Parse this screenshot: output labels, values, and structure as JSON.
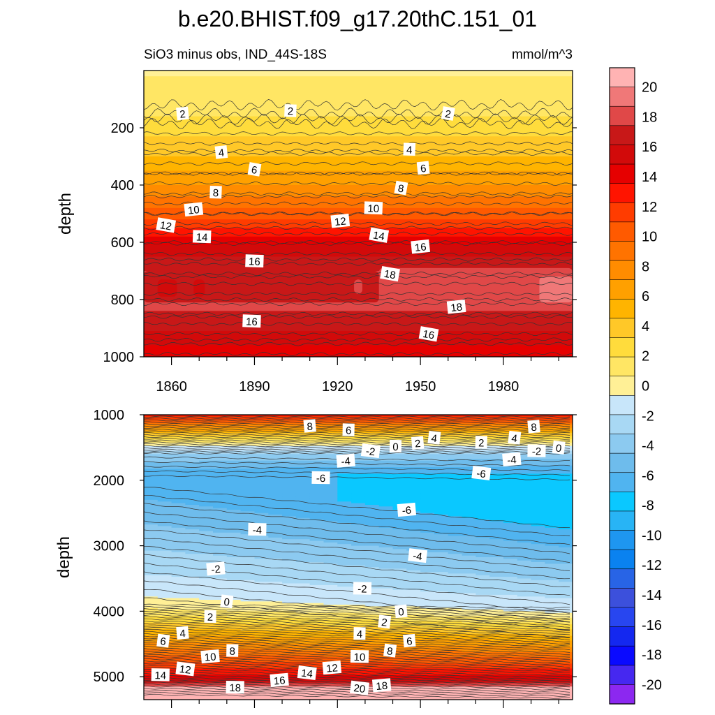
{
  "title": "b.e20.BHIST.f09_g17.20thC.151_01",
  "subtitle_left": "SiO3 minus obs, IND_44S-18S",
  "subtitle_right": "mmol/m^3",
  "chart_data": [
    {
      "type": "contour",
      "panel": "upper",
      "xlabel": "",
      "ylabel": "depth",
      "xlim": [
        1850,
        2005
      ],
      "ylim": [
        1000,
        0
      ],
      "xticks": [
        1860,
        1890,
        1920,
        1950,
        1980
      ],
      "yticks": [
        200,
        400,
        600,
        800,
        1000
      ],
      "grid": false,
      "depth_profile": [
        {
          "depth": 0,
          "value": 0.5
        },
        {
          "depth": 120,
          "value": 1.2
        },
        {
          "depth": 170,
          "value": 2
        },
        {
          "depth": 280,
          "value": 4
        },
        {
          "depth": 360,
          "value": 6
        },
        {
          "depth": 440,
          "value": 8
        },
        {
          "depth": 500,
          "value": 10
        },
        {
          "depth": 550,
          "value": 12
        },
        {
          "depth": 600,
          "value": 14
        },
        {
          "depth": 660,
          "value": 16
        },
        {
          "depth": 720,
          "value": 17.5
        },
        {
          "depth": 800,
          "value": 17.5
        },
        {
          "depth": 860,
          "value": 16.5
        },
        {
          "depth": 940,
          "value": 15
        },
        {
          "depth": 1000,
          "value": 13.5
        }
      ],
      "contour_labels": [
        {
          "text": "2",
          "x": 1864,
          "y": 150
        },
        {
          "text": "2",
          "x": 1903,
          "y": 140
        },
        {
          "text": "2",
          "x": 1960,
          "y": 150
        },
        {
          "text": "4",
          "x": 1878,
          "y": 285
        },
        {
          "text": "4",
          "x": 1946,
          "y": 275
        },
        {
          "text": "6",
          "x": 1890,
          "y": 345
        },
        {
          "text": "6",
          "x": 1951,
          "y": 340
        },
        {
          "text": "8",
          "x": 1876,
          "y": 425
        },
        {
          "text": "8",
          "x": 1943,
          "y": 410
        },
        {
          "text": "10",
          "x": 1868,
          "y": 485
        },
        {
          "text": "10",
          "x": 1933,
          "y": 480
        },
        {
          "text": "12",
          "x": 1858,
          "y": 540
        },
        {
          "text": "12",
          "x": 1921,
          "y": 525
        },
        {
          "text": "14",
          "x": 1871,
          "y": 580
        },
        {
          "text": "14",
          "x": 1935,
          "y": 575
        },
        {
          "text": "16",
          "x": 1950,
          "y": 615
        },
        {
          "text": "16",
          "x": 1890,
          "y": 665
        },
        {
          "text": "18",
          "x": 1939,
          "y": 710
        },
        {
          "text": "18",
          "x": 1963,
          "y": 825
        },
        {
          "text": "16",
          "x": 1889,
          "y": 875
        },
        {
          "text": "16",
          "x": 1953,
          "y": 920
        }
      ]
    },
    {
      "type": "contour",
      "panel": "lower",
      "xlabel": "",
      "ylabel": "depth",
      "xlim": [
        1850,
        2005
      ],
      "ylim": [
        5350,
        1000
      ],
      "yticks": [
        1000,
        2000,
        3000,
        4000,
        5000
      ],
      "grid": false,
      "contour_labels": [
        {
          "text": "8",
          "x": 1910,
          "y": 1170
        },
        {
          "text": "6",
          "x": 1924,
          "y": 1230
        },
        {
          "text": "4",
          "x": 1955,
          "y": 1350
        },
        {
          "text": "2",
          "x": 1949,
          "y": 1430
        },
        {
          "text": "0",
          "x": 1941,
          "y": 1480
        },
        {
          "text": "-2",
          "x": 1932,
          "y": 1550
        },
        {
          "text": "-4",
          "x": 1923,
          "y": 1700
        },
        {
          "text": "2",
          "x": 1972,
          "y": 1420
        },
        {
          "text": "4",
          "x": 1984,
          "y": 1350
        },
        {
          "text": "8",
          "x": 1991,
          "y": 1180
        },
        {
          "text": "-2",
          "x": 1992,
          "y": 1550
        },
        {
          "text": "0",
          "x": 2000,
          "y": 1500
        },
        {
          "text": "-4",
          "x": 1983,
          "y": 1680
        },
        {
          "text": "-6",
          "x": 1914,
          "y": 1960
        },
        {
          "text": "-6",
          "x": 1972,
          "y": 1890
        },
        {
          "text": "-6",
          "x": 1945,
          "y": 2450
        },
        {
          "text": "-4",
          "x": 1891,
          "y": 2750
        },
        {
          "text": "-4",
          "x": 1949,
          "y": 3150
        },
        {
          "text": "-2",
          "x": 1876,
          "y": 3350
        },
        {
          "text": "-2",
          "x": 1929,
          "y": 3650
        },
        {
          "text": "0",
          "x": 1880,
          "y": 3850
        },
        {
          "text": "0",
          "x": 1943,
          "y": 4000
        },
        {
          "text": "2",
          "x": 1874,
          "y": 4080
        },
        {
          "text": "2",
          "x": 1937,
          "y": 4160
        },
        {
          "text": "4",
          "x": 1864,
          "y": 4330
        },
        {
          "text": "4",
          "x": 1928,
          "y": 4340
        },
        {
          "text": "6",
          "x": 1857,
          "y": 4450
        },
        {
          "text": "6",
          "x": 1946,
          "y": 4450
        },
        {
          "text": "8",
          "x": 1882,
          "y": 4600
        },
        {
          "text": "8",
          "x": 1939,
          "y": 4600
        },
        {
          "text": "10",
          "x": 1874,
          "y": 4690
        },
        {
          "text": "10",
          "x": 1928,
          "y": 4690
        },
        {
          "text": "12",
          "x": 1865,
          "y": 4880
        },
        {
          "text": "12",
          "x": 1918,
          "y": 4860
        },
        {
          "text": "14",
          "x": 1856,
          "y": 4970
        },
        {
          "text": "14",
          "x": 1909,
          "y": 4940
        },
        {
          "text": "16",
          "x": 1899,
          "y": 5050
        },
        {
          "text": "18",
          "x": 1883,
          "y": 5160
        },
        {
          "text": "20",
          "x": 1928,
          "y": 5170
        },
        {
          "text": "18",
          "x": 1936,
          "y": 5130
        }
      ]
    }
  ],
  "colorbar": {
    "levels": [
      "20",
      "18",
      "16",
      "14",
      "12",
      "10",
      "8",
      "6",
      "4",
      "2",
      "0",
      "-2",
      "-4",
      "-6",
      "-8",
      "-10",
      "-12",
      "-14",
      "-16",
      "-18",
      "-20"
    ],
    "colors": [
      "#ffb3b3",
      "#f07878",
      "#e04848",
      "#c81818",
      "#d20a0a",
      "#e60000",
      "#ff1400",
      "#ff3c00",
      "#ff5a00",
      "#ff7300",
      "#ff8c00",
      "#ffa000",
      "#ffb400",
      "#ffc828",
      "#ffdc3c",
      "#ffe664",
      "#fff096",
      "#c8e6fa",
      "#a8d8f4",
      "#8ccaf0",
      "#6ebcec",
      "#50b4f0",
      "#0ac8ff",
      "#28b4f5",
      "#1e96f0",
      "#0a82f0",
      "#2864e6",
      "#3c50dc",
      "#2846f0",
      "#1428f0",
      "#0a0aff",
      "#4628f0",
      "#8c28f0"
    ]
  }
}
